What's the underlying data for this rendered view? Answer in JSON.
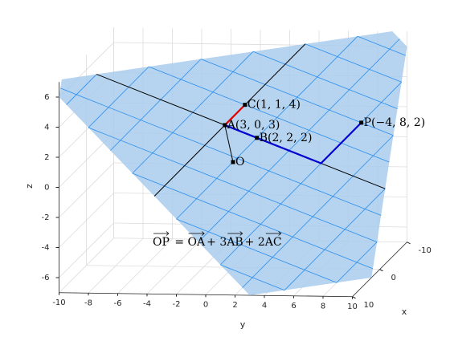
{
  "chart_data": {
    "type": "plane3d",
    "xlabel": "x",
    "ylabel": "y",
    "zlabel": "z",
    "xlim": [
      -10,
      10
    ],
    "ylim": [
      -10,
      10
    ],
    "zlim": [
      -7,
      7
    ],
    "xticks": [
      -10,
      0,
      10
    ],
    "yticks": [
      -10,
      -8,
      -6,
      -4,
      -2,
      0,
      2,
      4,
      6,
      8,
      10
    ],
    "zticks": [
      -6,
      -4,
      -2,
      0,
      2,
      4,
      6
    ],
    "grid": true,
    "surface_color": "#a9cdec",
    "mesh_color": "#1a86f0",
    "points": [
      {
        "label": "A(3, 0, 3)",
        "x": 3,
        "y": 0,
        "z": 3
      },
      {
        "label": "B(2, 2, 2)",
        "x": 2,
        "y": 2,
        "z": 2
      },
      {
        "label": "C(1, 1, 4)",
        "x": 1,
        "y": 1,
        "z": 4
      },
      {
        "label": "P(−4, 8, 2)",
        "x": -4,
        "y": 8,
        "z": 2
      },
      {
        "label": "O",
        "x": 0,
        "y": 0,
        "z": 0
      }
    ],
    "segments": [
      {
        "color": "#000000",
        "x": [
          0,
          3
        ],
        "y": [
          0,
          0
        ],
        "z": [
          0,
          3
        ]
      },
      {
        "color": "#e00000",
        "x": [
          3,
          1
        ],
        "y": [
          0,
          1
        ],
        "z": [
          3,
          4
        ]
      },
      {
        "color": "#0000d0",
        "x": [
          3,
          0,
          -4
        ],
        "y": [
          0,
          6,
          8
        ],
        "z": [
          3,
          0,
          2
        ]
      }
    ],
    "equation": [
      {
        "text": "OP",
        "vector": true
      },
      {
        "text": " = ",
        "vector": false
      },
      {
        "text": "OA",
        "vector": true
      },
      {
        "text": "+ ",
        "vector": false
      },
      {
        "text": "3",
        "vector": false
      },
      {
        "text": "AB",
        "vector": true
      },
      {
        "text": "+ ",
        "vector": false
      },
      {
        "text": "2",
        "vector": false
      },
      {
        "text": "AC",
        "vector": true
      }
    ]
  }
}
